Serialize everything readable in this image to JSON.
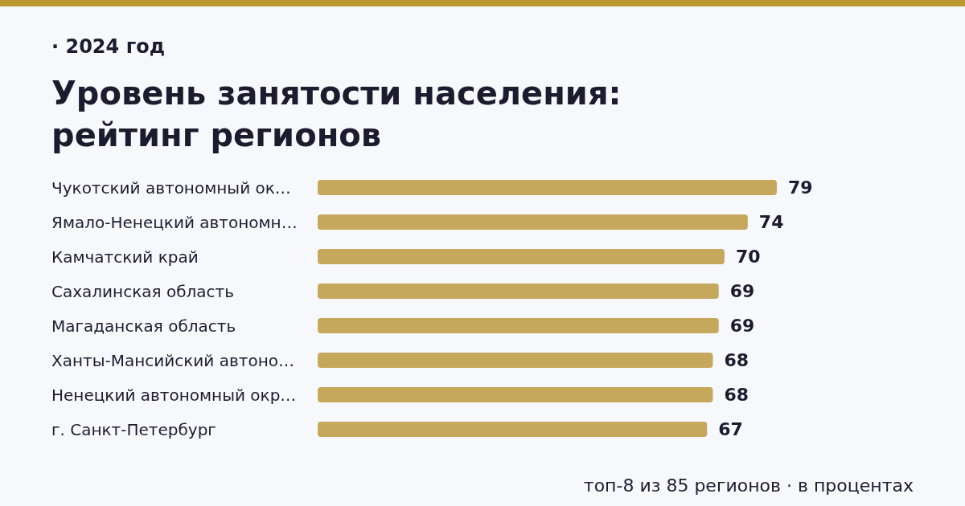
{
  "chart_data": {
    "type": "bar",
    "orientation": "horizontal",
    "subtitle": "· 2024 год",
    "title": "Уровень занятости населения: рейтинг регионов",
    "categories": [
      "Чукотский автономный ок…",
      "Ямало-Ненецкий автономн…",
      "Камчатский край",
      "Сахалинская область",
      "Магаданская область",
      "Ханты-Мансийский автоно…",
      "Ненецкий автономный окр…",
      "г. Санкт-Петербург"
    ],
    "values": [
      79,
      74,
      70,
      69,
      69,
      68,
      68,
      67
    ],
    "color": "#c6a85c",
    "data_labels": true,
    "annotations": [
      "топ-8 из 85 регионов · в процентах"
    ]
  }
}
